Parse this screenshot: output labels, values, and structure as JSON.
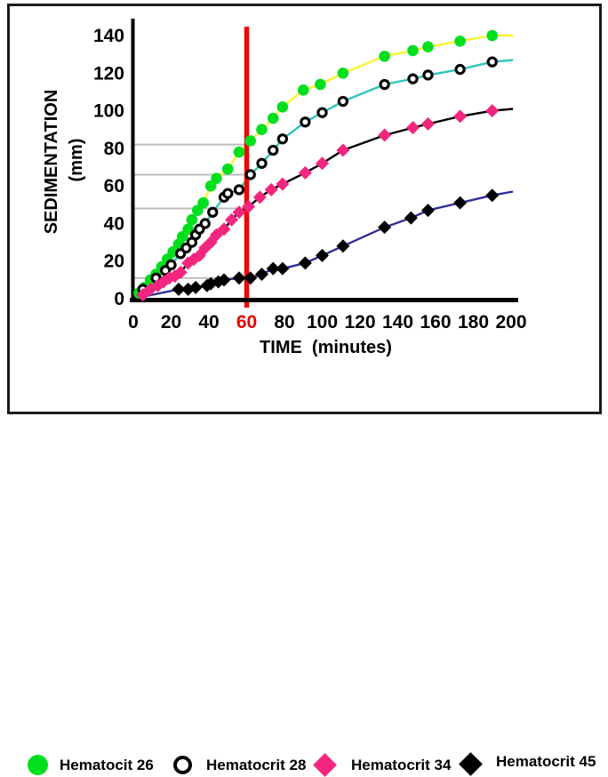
{
  "chart_data": {
    "type": "line",
    "title": "",
    "xlabel": "TIME  (minutes)",
    "ylabel": "SEDIMENTATION",
    "ylabel_unit": "(mm)",
    "xlim": [
      0,
      200
    ],
    "ylim": [
      0,
      145
    ],
    "grid": false,
    "x_ticks": [
      0,
      20,
      40,
      60,
      80,
      100,
      120,
      140,
      160,
      180,
      200
    ],
    "y_ticks": [
      0,
      20,
      40,
      60,
      80,
      100,
      120,
      140
    ],
    "highlighted_x_tick": {
      "value": 60,
      "color": "#e80000"
    },
    "vertical_marker_line": {
      "x": 60,
      "color": "#ee0707"
    },
    "reference_lines": {
      "values": [
        82,
        66,
        48,
        11
      ],
      "x_range": [
        0,
        60
      ],
      "color": "#bdbdbd"
    },
    "legend_position": "bottom",
    "series": [
      {
        "name": "Hematocit 26",
        "marker": "filled-circle",
        "marker_color": "#00df1e",
        "line_color": "#f6f js52f",
        "points": []
      }
    ]
  }
}
